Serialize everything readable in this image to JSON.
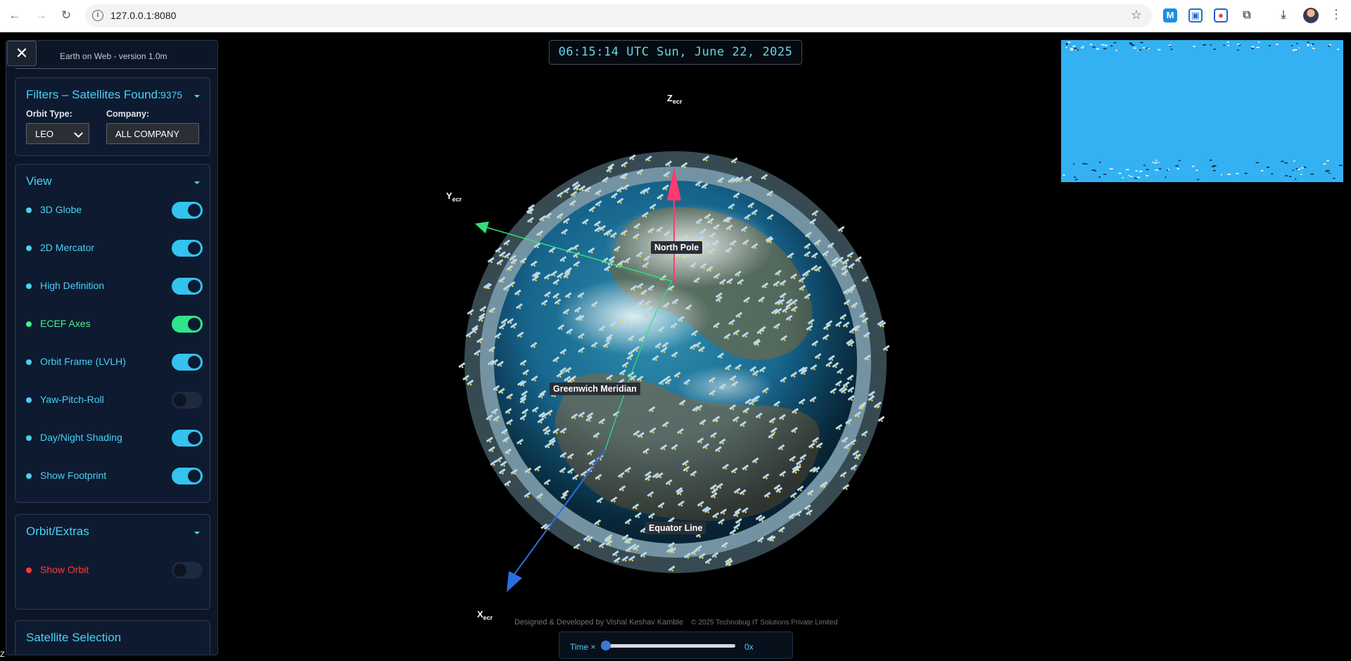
{
  "browser": {
    "url": "127.0.0.1:8080"
  },
  "panel": {
    "close_symbol": "✕",
    "version": "Earth on Web - version 1.0m",
    "filters": {
      "title": "Filters – Satellites Found:",
      "count": "9375",
      "orbit_type_label": "Orbit Type:",
      "orbit_type_value": "LEO",
      "company_label": "Company:",
      "company_value": "ALL COMPANY"
    },
    "view": {
      "title": "View",
      "items": [
        {
          "label": "3D Globe",
          "on": true,
          "color": "#49d1f4"
        },
        {
          "label": "2D Mercator",
          "on": true,
          "color": "#49d1f4"
        },
        {
          "label": "High Definition",
          "on": true,
          "color": "#49d1f4"
        },
        {
          "label": "ECEF Axes",
          "on": true,
          "color": "#3ff58d"
        },
        {
          "label": "Orbit Frame (LVLH)",
          "on": true,
          "color": "#49d1f4"
        },
        {
          "label": "Yaw-Pitch-Roll",
          "on": false,
          "color": "#49d1f4"
        },
        {
          "label": "Day/Night Shading",
          "on": true,
          "color": "#49d1f4"
        },
        {
          "label": "Show Footprint",
          "on": true,
          "color": "#49d1f4"
        }
      ]
    },
    "extras": {
      "title": "Orbit/Extras",
      "items": [
        {
          "label": "Show Orbit",
          "on": false,
          "color": "#ff3a3a"
        }
      ]
    },
    "selection": {
      "title": "Satellite Selection"
    }
  },
  "scene": {
    "clock": "06:15:14 UTC Sun, June 22, 2025",
    "axes": {
      "z": {
        "main": "Z",
        "sub": "ecr"
      },
      "y": {
        "main": "Y",
        "sub": "ecr"
      },
      "x": {
        "main": "X",
        "sub": "ecr"
      }
    },
    "labels": {
      "north_pole": "North Pole",
      "greenwich": "Greenwich Meridian",
      "equator": "Equator Line"
    },
    "credits": {
      "designer": "Designed & Developed by Vishal Keshav Kamble",
      "copyright": "© 2025 Technobug IT Solutions Private Limited"
    },
    "time": {
      "label": "Time ×",
      "value": "0x",
      "fraction": 0
    }
  },
  "corner_text": "Z",
  "colors": {
    "accent": "#49d1f4",
    "green": "#3ff58d",
    "red": "#ff3a3a",
    "minimap_ocean": "#33b1f3"
  }
}
